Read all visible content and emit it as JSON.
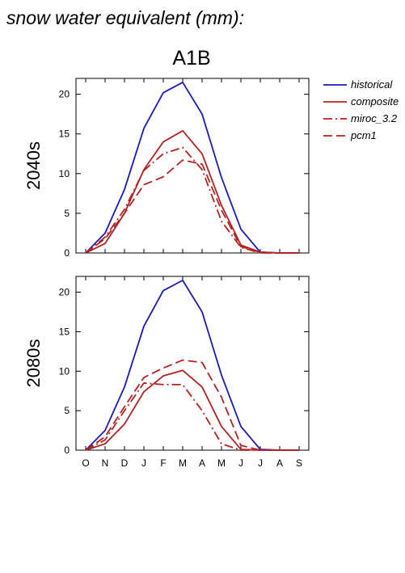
{
  "title": "snow water equivalent (mm):",
  "chart_data": {
    "type": "line",
    "scenario": "A1B",
    "categories": [
      "O",
      "N",
      "D",
      "J",
      "F",
      "M",
      "A",
      "M",
      "J",
      "J",
      "A",
      "S"
    ],
    "ylim": [
      0,
      22
    ],
    "yticks": [
      0,
      5,
      10,
      15,
      20
    ],
    "grid": false,
    "legend_position": "top-right",
    "legend": [
      {
        "name": "historical",
        "color": "#1a1ab8",
        "dash": "solid"
      },
      {
        "name": "composite",
        "color": "#b22222",
        "dash": "solid"
      },
      {
        "name": "miroc_3.2",
        "color": "#b22222",
        "dash": "dashdot"
      },
      {
        "name": "pcm1",
        "color": "#b22222",
        "dash": "dashed"
      }
    ],
    "panels": [
      {
        "label": "2040s",
        "series": [
          {
            "name": "historical",
            "values": [
              0,
              2.5,
              8,
              15.7,
              20.2,
              21.5,
              17.5,
              9.5,
              3,
              0.1,
              0,
              0
            ]
          },
          {
            "name": "composite",
            "values": [
              0,
              1.2,
              5,
              10.5,
              14,
              15.4,
              12.5,
              6,
              1,
              0.1,
              0,
              0
            ]
          },
          {
            "name": "miroc_3.2",
            "values": [
              0,
              2,
              5.5,
              10.4,
              12.5,
              13.3,
              10.5,
              4,
              0.7,
              0,
              0,
              0
            ]
          },
          {
            "name": "pcm1",
            "values": [
              0,
              1.8,
              5,
              8.6,
              9.6,
              11.7,
              11.2,
              5.4,
              0.8,
              0.1,
              0,
              0
            ]
          }
        ]
      },
      {
        "label": "2080s",
        "series": [
          {
            "name": "historical",
            "values": [
              0,
              2.5,
              8,
              15.7,
              20.2,
              21.5,
              17.5,
              9.5,
              3,
              0.1,
              0,
              0
            ]
          },
          {
            "name": "composite",
            "values": [
              0,
              0.8,
              3.3,
              7.4,
              9.4,
              10.1,
              8,
              3,
              0.1,
              0,
              0,
              0
            ]
          },
          {
            "name": "miroc_3.2",
            "values": [
              0,
              1.3,
              5,
              8.5,
              8.3,
              8.3,
              5,
              0.8,
              0,
              0,
              0,
              0
            ]
          },
          {
            "name": "pcm1",
            "values": [
              0,
              1.7,
              5.5,
              9.2,
              10.4,
              11.4,
              11.1,
              6.7,
              0.6,
              0,
              0,
              0
            ]
          }
        ]
      }
    ]
  }
}
